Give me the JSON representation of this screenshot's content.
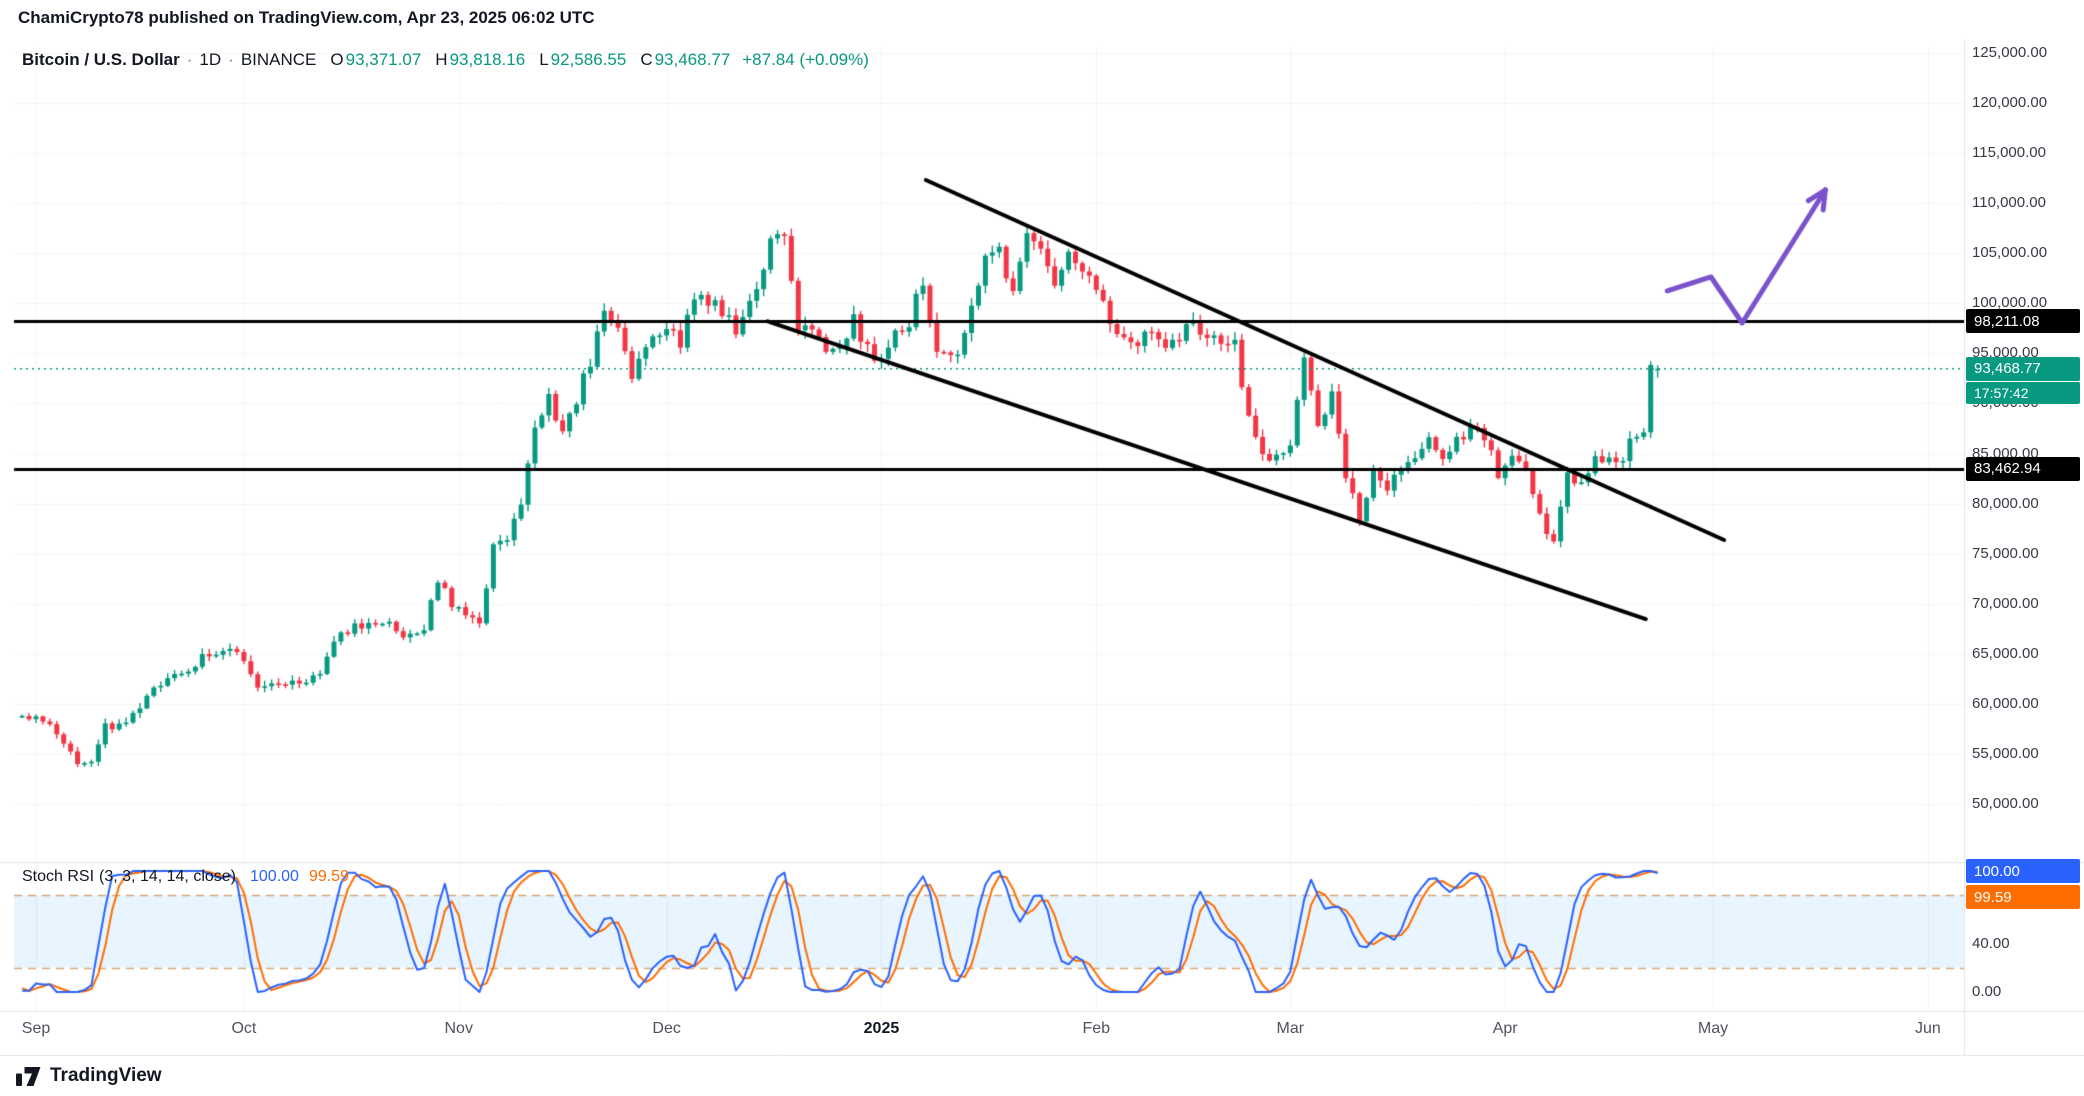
{
  "header": {
    "publish_info": "ChamiCrypto78 published on TradingView.com, Apr 23, 2025 06:02 UTC"
  },
  "legend": {
    "symbol": "Bitcoin / U.S. Dollar",
    "separator": "·",
    "interval": "1D",
    "exchange": "BINANCE",
    "o_label": "O",
    "open": "93,371.07",
    "h_label": "H",
    "high": "93,818.16",
    "l_label": "L",
    "low": "92,586.55",
    "c_label": "C",
    "close": "93,468.77",
    "change": "+87.84 (+0.09%)"
  },
  "price_axis": {
    "ticks": [
      {
        "label": "125,000.00",
        "value": 125000
      },
      {
        "label": "120,000.00",
        "value": 120000
      },
      {
        "label": "115,000.00",
        "value": 115000
      },
      {
        "label": "110,000.00",
        "value": 110000
      },
      {
        "label": "105,000.00",
        "value": 105000
      },
      {
        "label": "100,000.00",
        "value": 100000
      },
      {
        "label": "95,000.00",
        "value": 95000
      },
      {
        "label": "90,000.00",
        "value": 90000
      },
      {
        "label": "85,000.00",
        "value": 85000
      },
      {
        "label": "80,000.00",
        "value": 80000
      },
      {
        "label": "75,000.00",
        "value": 75000
      },
      {
        "label": "70,000.00",
        "value": 70000
      },
      {
        "label": "65,000.00",
        "value": 65000
      },
      {
        "label": "60,000.00",
        "value": 60000
      },
      {
        "label": "55,000.00",
        "value": 55000
      },
      {
        "label": "50,000.00",
        "value": 50000
      }
    ]
  },
  "levels": [
    {
      "label": "98,211.08",
      "value": 98211.08
    },
    {
      "label": "83,462.94",
      "value": 83462.94
    }
  ],
  "last_price": {
    "label": "93,468.77",
    "value": 93468.77,
    "countdown": "17:57:42"
  },
  "stoch": {
    "title": "Stoch RSI",
    "params": "(3, 3, 14, 14, close)",
    "k_value": "100.00",
    "d_value": "99.59",
    "ticks": [
      {
        "label": "40.00",
        "value": 40
      },
      {
        "label": "0.00",
        "value": 0
      }
    ]
  },
  "time_axis": {
    "months": [
      {
        "label": "Sep",
        "day": 0
      },
      {
        "label": "Oct",
        "day": 30
      },
      {
        "label": "Nov",
        "day": 61
      },
      {
        "label": "Dec",
        "day": 91
      },
      {
        "label": "2025",
        "day": 122,
        "bold": true
      },
      {
        "label": "Feb",
        "day": 153
      },
      {
        "label": "Mar",
        "day": 181
      },
      {
        "label": "Apr",
        "day": 212
      },
      {
        "label": "May",
        "day": 242
      },
      {
        "label": "Jun",
        "day": 273
      }
    ]
  },
  "toolbar": {
    "brand": "TradingView"
  },
  "colors": {
    "up": "#089981",
    "down": "#f23645",
    "level_line": "#000000",
    "trendline": "#000000",
    "arrow": "#7a52cc",
    "stoch_k": "#2962ff",
    "stoch_d": "#ff6d00",
    "stoch_fill": "rgba(33,150,243,0.10)",
    "stoch_band": "rgba(200,124,46,0.65)",
    "grid": "rgba(42,46,57,0.055)",
    "separator": "#e0e3eb",
    "level_bg": "#000000",
    "last_price_bg": "#089981"
  },
  "chart_data": {
    "type": "candlestick",
    "title": "Bitcoin / U.S. Dollar, 1D, BINANCE",
    "x_unit": "days since Sep 1, 2024",
    "price_range": [
      50000,
      125000
    ],
    "grid": true,
    "last": {
      "o": 93371.07,
      "h": 93818.16,
      "l": 92586.55,
      "c": 93468.77,
      "change": 87.84,
      "change_pct": 0.09
    },
    "levels": [
      98211.08,
      83462.94
    ],
    "keypoints": [
      [
        -40,
        61000
      ],
      [
        -30,
        64200
      ],
      [
        -22,
        59400
      ],
      [
        -12,
        61200
      ],
      [
        -5,
        59200
      ],
      [
        0,
        58800
      ],
      [
        3,
        57300
      ],
      [
        6,
        53900
      ],
      [
        8,
        54400
      ],
      [
        10,
        57600
      ],
      [
        13,
        58200
      ],
      [
        16,
        60500
      ],
      [
        19,
        63000
      ],
      [
        22,
        63300
      ],
      [
        25,
        65200
      ],
      [
        28,
        65700
      ],
      [
        30,
        63800
      ],
      [
        32,
        61700
      ],
      [
        35,
        62400
      ],
      [
        38,
        62100
      ],
      [
        41,
        62800
      ],
      [
        44,
        67400
      ],
      [
        47,
        67700
      ],
      [
        50,
        68300
      ],
      [
        53,
        67000
      ],
      [
        56,
        67500
      ],
      [
        58,
        72300
      ],
      [
        60,
        70200
      ],
      [
        62,
        69400
      ],
      [
        64,
        68200
      ],
      [
        66,
        75600
      ],
      [
        68,
        76500
      ],
      [
        70,
        80400
      ],
      [
        72,
        88000
      ],
      [
        74,
        90500
      ],
      [
        76,
        87300
      ],
      [
        78,
        90500
      ],
      [
        80,
        94300
      ],
      [
        82,
        98900
      ],
      [
        84,
        97700
      ],
      [
        86,
        93100
      ],
      [
        88,
        95900
      ],
      [
        91,
        97300
      ],
      [
        93,
        96000
      ],
      [
        95,
        101100
      ],
      [
        98,
        99800
      ],
      [
        101,
        97300
      ],
      [
        104,
        101400
      ],
      [
        106,
        106100
      ],
      [
        108,
        106200
      ],
      [
        110,
        97500
      ],
      [
        112,
        97800
      ],
      [
        114,
        95600
      ],
      [
        116,
        94900
      ],
      [
        118,
        98400
      ],
      [
        120,
        95300
      ],
      [
        122,
        94400
      ],
      [
        124,
        96900
      ],
      [
        126,
        98200
      ],
      [
        128,
        102300
      ],
      [
        130,
        94700
      ],
      [
        133,
        94500
      ],
      [
        135,
        100500
      ],
      [
        137,
        104100
      ],
      [
        139,
        104900
      ],
      [
        141,
        101300
      ],
      [
        143,
        106200
      ],
      [
        145,
        104800
      ],
      [
        147,
        102100
      ],
      [
        149,
        104700
      ],
      [
        151,
        102600
      ],
      [
        153,
        101400
      ],
      [
        155,
        97700
      ],
      [
        157,
        96600
      ],
      [
        159,
        96500
      ],
      [
        161,
        97500
      ],
      [
        163,
        95800
      ],
      [
        165,
        96600
      ],
      [
        167,
        98300
      ],
      [
        169,
        96100
      ],
      [
        171,
        96600
      ],
      [
        173,
        95800
      ],
      [
        175,
        88700
      ],
      [
        177,
        84700
      ],
      [
        179,
        84300
      ],
      [
        181,
        86000
      ],
      [
        183,
        94200
      ],
      [
        185,
        87300
      ],
      [
        187,
        90600
      ],
      [
        189,
        82900
      ],
      [
        191,
        78500
      ],
      [
        193,
        83700
      ],
      [
        195,
        81100
      ],
      [
        197,
        83900
      ],
      [
        199,
        84000
      ],
      [
        201,
        86800
      ],
      [
        203,
        84000
      ],
      [
        205,
        86900
      ],
      [
        207,
        87200
      ],
      [
        209,
        86900
      ],
      [
        211,
        82500
      ],
      [
        213,
        85200
      ],
      [
        215,
        83200
      ],
      [
        217,
        78400
      ],
      [
        219,
        76300
      ],
      [
        221,
        82600
      ],
      [
        223,
        81800
      ],
      [
        225,
        84600
      ],
      [
        227,
        84000
      ],
      [
        229,
        84500
      ],
      [
        231,
        87300
      ],
      [
        232,
        87500
      ],
      [
        233,
        93400
      ],
      [
        234,
        93468.77
      ]
    ],
    "trendlines": [
      {
        "d1": 128.4,
        "p1": 112317,
        "d2": 243.6,
        "p2": 76365
      },
      {
        "d1": 105.6,
        "p1": 98200,
        "d2": 232.3,
        "p2": 68472
      }
    ],
    "arrow": {
      "points": [
        [
          235.4,
          101233
        ],
        [
          241.7,
          102631
        ],
        [
          246.2,
          98038
        ],
        [
          258.2,
          111318
        ]
      ]
    },
    "stoch_rsi": {
      "k_period": 3,
      "d_period": 3,
      "rsi_length": 14,
      "stoch_length": 14,
      "source": "close",
      "k_current": 100.0,
      "d_current": 99.59,
      "upper_band": 80,
      "lower_band": 20
    }
  }
}
